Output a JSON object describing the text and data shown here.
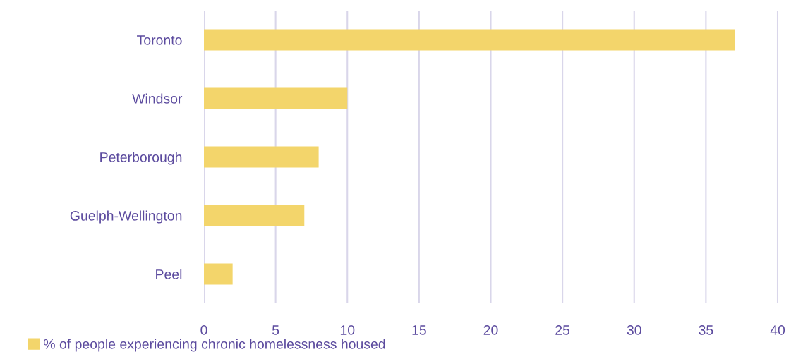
{
  "chart_data": {
    "type": "bar",
    "orientation": "horizontal",
    "categories": [
      "Toronto",
      "Windsor",
      "Peterborough",
      "Guelph-Wellington",
      "Peel"
    ],
    "series": [
      {
        "name": "% of people experiencing chronic homelessness housed",
        "color": "#f3d56b",
        "values": [
          37,
          10,
          8,
          7,
          2
        ]
      }
    ],
    "xlim": [
      0,
      40
    ],
    "xticks": [
      0,
      5,
      10,
      15,
      20,
      25,
      30,
      35,
      40
    ],
    "grid": "x",
    "legend": "bottom left"
  }
}
